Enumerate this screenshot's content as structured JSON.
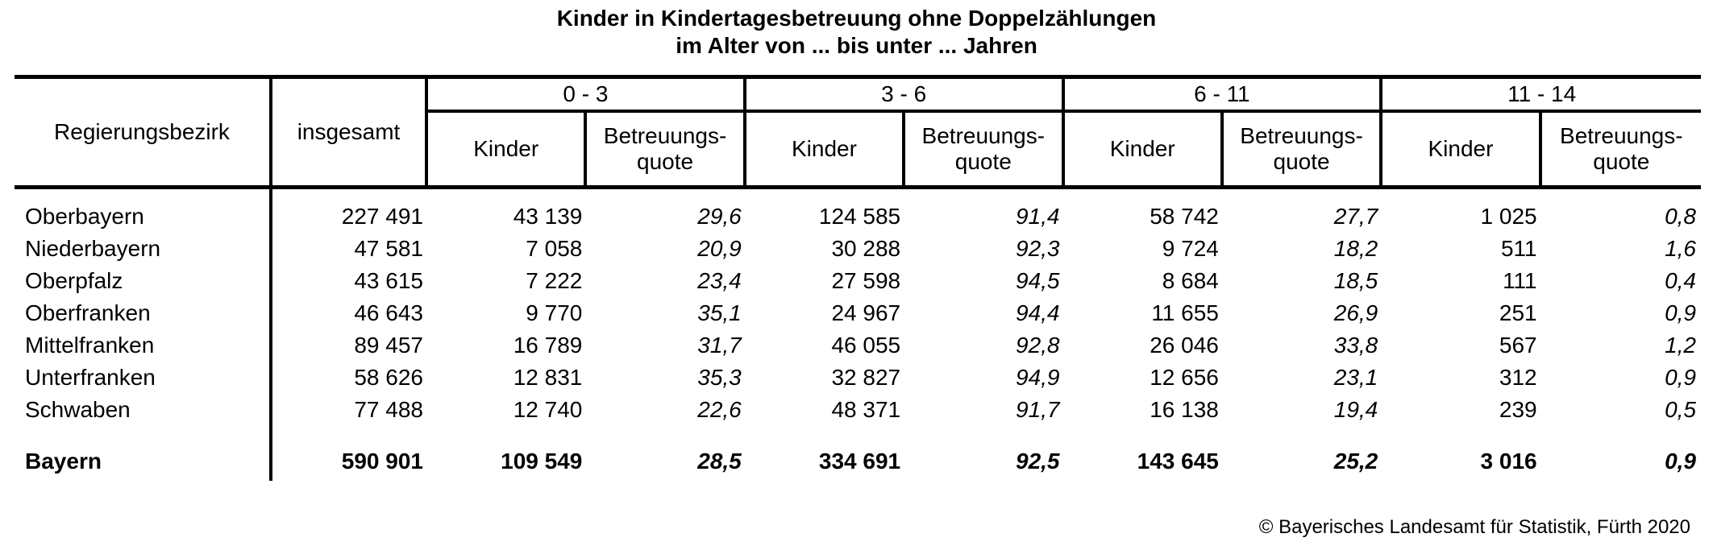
{
  "title": {
    "line1": "Kinder in Kindertagesbetreuung ohne Doppelzählungen",
    "line2": "im Alter von ... bis unter ... Jahren"
  },
  "table": {
    "col_region": "Regierungsbezirk",
    "col_total": "insgesamt",
    "age_groups": [
      "0 - 3",
      "3 - 6",
      "6 - 11",
      "11 - 14"
    ],
    "col_kinder": "Kinder",
    "col_quote": "Betreuungs-\nquote",
    "rows": [
      {
        "region": "Oberbayern",
        "cells": [
          "227 491",
          "43 139",
          "29,6",
          "124 585",
          "91,4",
          "58 742",
          "27,7",
          "1 025",
          "0,8"
        ]
      },
      {
        "region": "Niederbayern",
        "cells": [
          "47 581",
          "7 058",
          "20,9",
          "30 288",
          "92,3",
          "9 724",
          "18,2",
          "511",
          "1,6"
        ]
      },
      {
        "region": "Oberpfalz",
        "cells": [
          "43 615",
          "7 222",
          "23,4",
          "27 598",
          "94,5",
          "8 684",
          "18,5",
          "111",
          "0,4"
        ]
      },
      {
        "region": "Oberfranken",
        "cells": [
          "46 643",
          "9 770",
          "35,1",
          "24 967",
          "94,4",
          "11 655",
          "26,9",
          "251",
          "0,9"
        ]
      },
      {
        "region": "Mittelfranken",
        "cells": [
          "89 457",
          "16 789",
          "31,7",
          "46 055",
          "92,8",
          "26 046",
          "33,8",
          "567",
          "1,2"
        ]
      },
      {
        "region": "Unterfranken",
        "cells": [
          "58 626",
          "12 831",
          "35,3",
          "32 827",
          "94,9",
          "12 656",
          "23,1",
          "312",
          "0,9"
        ]
      },
      {
        "region": "Schwaben",
        "cells": [
          "77 488",
          "12 740",
          "22,6",
          "48 371",
          "91,7",
          "16 138",
          "19,4",
          "239",
          "0,5"
        ]
      }
    ],
    "total_row": {
      "region": "Bayern",
      "cells": [
        "590 901",
        "109 549",
        "28,5",
        "334 691",
        "92,5",
        "143 645",
        "25,2",
        "3 016",
        "0,9"
      ]
    }
  },
  "footer": {
    "copyright": "© Bayerisches Landesamt für Statistik, Fürth 2020"
  },
  "colors": {
    "text": "#000000",
    "background": "#ffffff",
    "rule": "#000000"
  }
}
